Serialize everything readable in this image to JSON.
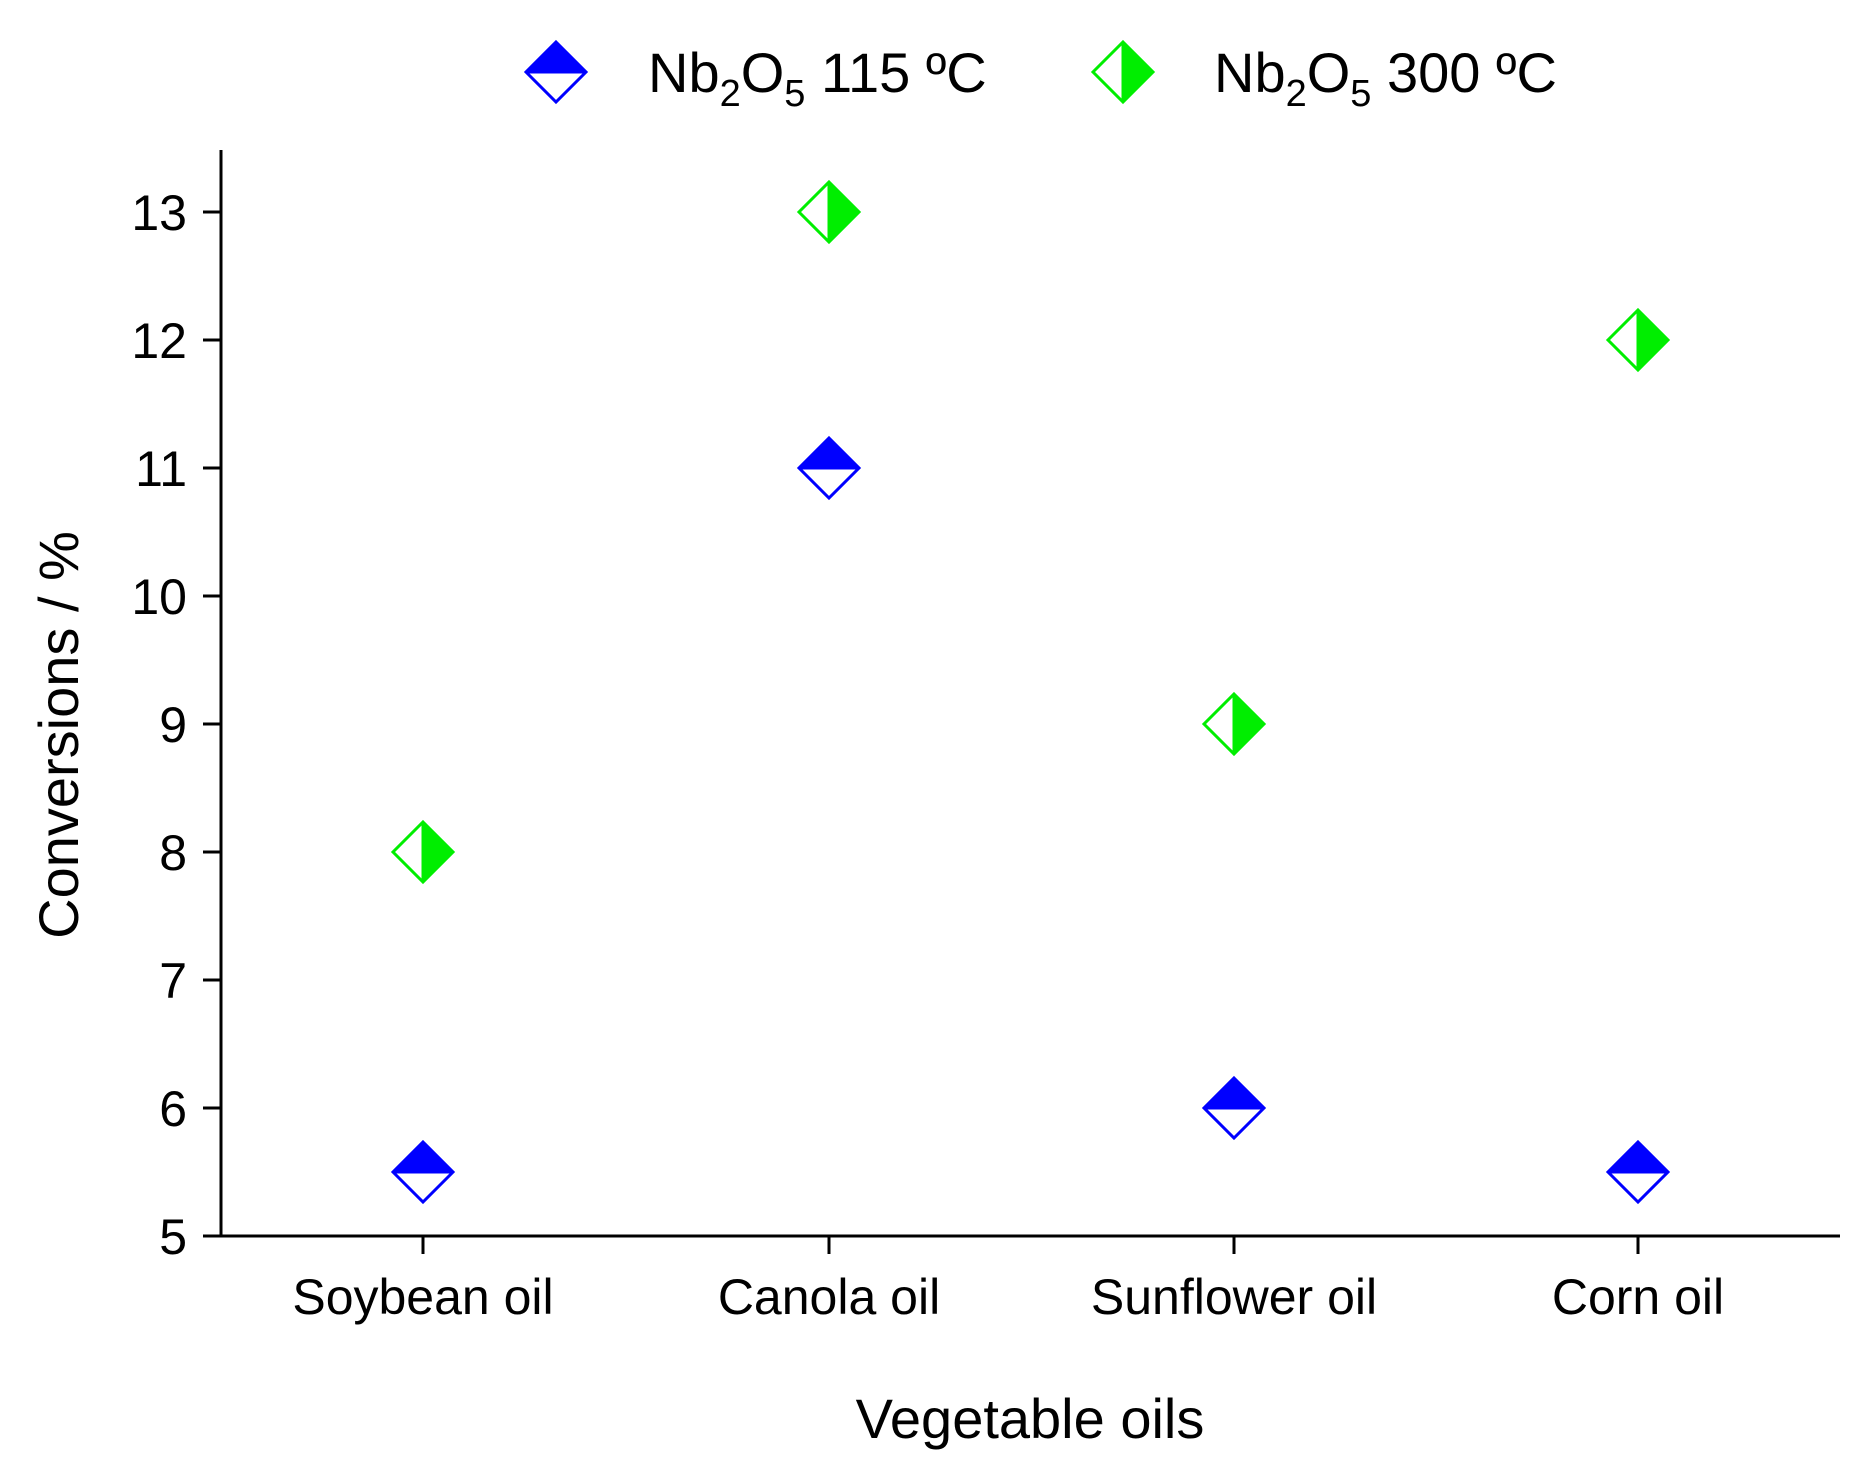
{
  "chart_data": {
    "type": "scatter",
    "title": "",
    "xlabel": "Vegetable oils",
    "ylabel": "Conversions / %",
    "categories": [
      "Soybean oil",
      "Canola oil",
      "Sunflower oil",
      "Corn oil"
    ],
    "ylim": [
      5,
      13.5
    ],
    "yticks": [
      5,
      6,
      7,
      8,
      9,
      10,
      11,
      12,
      13
    ],
    "grid": false,
    "legend_position": "top",
    "series": [
      {
        "name": "Nb2O5 115 ºC",
        "label_parts": {
          "base": "Nb",
          "sub1": "2",
          "mid": "O",
          "sub2": "5",
          "rest": " 115 ºC"
        },
        "color": "#0000ff",
        "marker": "diamond-half-top",
        "values": [
          5.5,
          11,
          6,
          5.5
        ]
      },
      {
        "name": "Nb2O5 300 ºC",
        "label_parts": {
          "base": "Nb",
          "sub1": "2",
          "mid": "O",
          "sub2": "5",
          "rest": " 300 ºC"
        },
        "color": "#00ee00",
        "marker": "diamond-half-right",
        "values": [
          8,
          13,
          9,
          12
        ]
      }
    ]
  }
}
